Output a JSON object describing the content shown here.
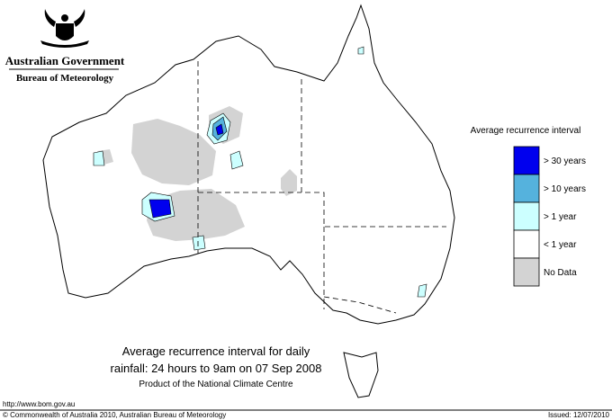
{
  "header": {
    "government": "Australian Government",
    "agency": "Bureau of Meteorology"
  },
  "legend": {
    "title": "Average recurrence interval",
    "items": [
      {
        "label": "> 30 years",
        "color": "#0000ee"
      },
      {
        "label": "> 10 years",
        "color": "#55b2dd"
      },
      {
        "label": "> 1 year",
        "color": "#ccffff"
      },
      {
        "label": "< 1 year",
        "color": "#ffffff"
      },
      {
        "label": "No Data",
        "color": "#d3d3d3"
      }
    ]
  },
  "caption": {
    "lines": [
      "Average recurrence interval for daily",
      "rainfall: 24 hours to 9am on 07 Sep 2008"
    ],
    "credit": "Product of the National Climate Centre"
  },
  "footer": {
    "url": "http://www.bom.gov.au",
    "copyright": "© Commonwealth of Australia 2010, Australian Bureau of Meteorology",
    "issued": "Issued: 12/07/2010"
  }
}
